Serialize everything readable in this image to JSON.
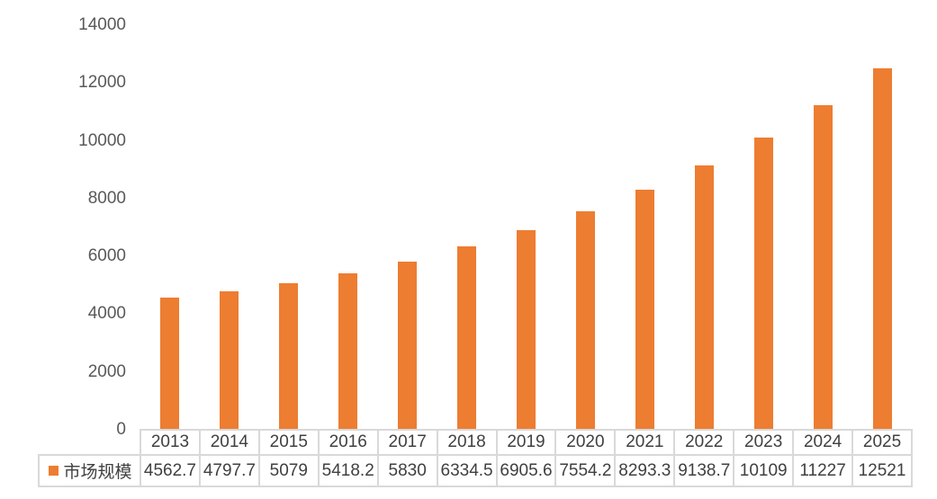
{
  "chart_data": {
    "type": "bar",
    "title": "",
    "xlabel": "",
    "ylabel": "",
    "ylim": [
      0,
      14000
    ],
    "yticks": [
      0,
      2000,
      4000,
      6000,
      8000,
      10000,
      12000,
      14000
    ],
    "grid": false,
    "legend_position": "data-table",
    "categories": [
      "2013",
      "2014",
      "2015",
      "2016",
      "2017",
      "2018",
      "2019",
      "2020",
      "2021",
      "2022",
      "2023",
      "2024",
      "2025"
    ],
    "series": [
      {
        "name": "市场规模",
        "color": "#ED7D31",
        "values": [
          4562.7,
          4797.7,
          5079,
          5418.2,
          5830,
          6334.5,
          6905.6,
          7554.2,
          8293.3,
          9138.7,
          10109,
          11227,
          12521
        ]
      }
    ],
    "data_table": {
      "row_label": "市场规模",
      "display_values": [
        "4562.7",
        "4797.7",
        "5079",
        "5418.2",
        "5830",
        "6334.5",
        "6905.6",
        "7554.2",
        "8293.3",
        "9138.7",
        "10109",
        "11227",
        "12521"
      ]
    }
  }
}
